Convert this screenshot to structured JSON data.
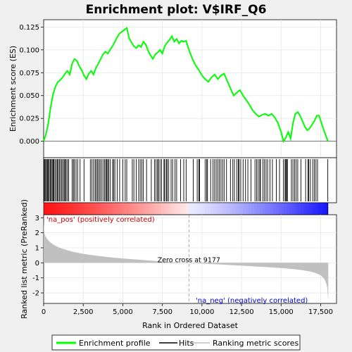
{
  "chart_data": {
    "type": "line",
    "title": "Enrichment plot: V$IRF_Q6",
    "xlabel": "Rank in Ordered Dataset",
    "ylabel_top": "Enrichment score (ES)",
    "ylabel_bottom": "Ranked list metric (PreRanked)",
    "x_range": [
      0,
      18500
    ],
    "es_ylim": [
      -0.018,
      0.133
    ],
    "metric_ylim": [
      -2.7,
      3.2
    ],
    "x_ticks": [
      {
        "v": 0,
        "label": "0"
      },
      {
        "v": 2500,
        "label": "2,500"
      },
      {
        "v": 5000,
        "label": "5,000"
      },
      {
        "v": 7500,
        "label": "7,500"
      },
      {
        "v": 10000,
        "label": "10,000"
      },
      {
        "v": 12500,
        "label": "12,500"
      },
      {
        "v": 15000,
        "label": "15,000"
      },
      {
        "v": 17500,
        "label": "17,500"
      }
    ],
    "es_ticks": [
      {
        "v": 0.0,
        "label": "0.000"
      },
      {
        "v": 0.025,
        "label": "0.025"
      },
      {
        "v": 0.05,
        "label": "0.050"
      },
      {
        "v": 0.075,
        "label": "0.075"
      },
      {
        "v": 0.1,
        "label": "0.100"
      },
      {
        "v": 0.125,
        "label": "0.125"
      }
    ],
    "metric_ticks": [
      {
        "v": -2,
        "label": "-2"
      },
      {
        "v": -1,
        "label": "-1"
      },
      {
        "v": 0,
        "label": "0"
      },
      {
        "v": 1,
        "label": "1"
      },
      {
        "v": 2,
        "label": "2"
      },
      {
        "v": 3,
        "label": "3"
      }
    ],
    "es_series": {
      "name": "Enrichment profile",
      "color": "#00ff00",
      "x": [
        0,
        150,
        300,
        450,
        600,
        750,
        900,
        1050,
        1200,
        1350,
        1500,
        1650,
        1800,
        1950,
        2100,
        2250,
        2400,
        2550,
        2700,
        2850,
        3000,
        3150,
        3300,
        3450,
        3600,
        3750,
        3900,
        4050,
        4200,
        4350,
        4500,
        4650,
        4800,
        4950,
        5100,
        5250,
        5400,
        5550,
        5700,
        5850,
        6000,
        6150,
        6300,
        6450,
        6600,
        6750,
        6900,
        7050,
        7200,
        7350,
        7500,
        7650,
        7800,
        7950,
        8100,
        8250,
        8400,
        8550,
        8700,
        8850,
        9000,
        9177,
        9400,
        9600,
        9800,
        10000,
        10200,
        10400,
        10600,
        10800,
        11000,
        11200,
        11400,
        11600,
        11800,
        12000,
        12200,
        12400,
        12600,
        12800,
        13000,
        13200,
        13400,
        13600,
        13800,
        14000,
        14200,
        14400,
        14600,
        14800,
        15000,
        15150,
        15300,
        15450,
        15600,
        15750,
        15900,
        16050,
        16200,
        16350,
        16500,
        16650,
        16800,
        16950,
        17100,
        17250,
        17400,
        17550,
        17700,
        17850,
        17950
      ],
      "y": [
        0.0,
        0.008,
        0.02,
        0.038,
        0.052,
        0.06,
        0.065,
        0.067,
        0.07,
        0.074,
        0.077,
        0.073,
        0.085,
        0.09,
        0.088,
        0.082,
        0.078,
        0.072,
        0.068,
        0.074,
        0.077,
        0.073,
        0.08,
        0.085,
        0.09,
        0.095,
        0.098,
        0.096,
        0.1,
        0.104,
        0.109,
        0.114,
        0.118,
        0.12,
        0.122,
        0.124,
        0.113,
        0.108,
        0.104,
        0.102,
        0.105,
        0.103,
        0.109,
        0.106,
        0.099,
        0.094,
        0.09,
        0.095,
        0.097,
        0.1,
        0.096,
        0.104,
        0.108,
        0.111,
        0.115,
        0.109,
        0.112,
        0.107,
        0.11,
        0.109,
        0.11,
        0.1,
        0.09,
        0.083,
        0.078,
        0.072,
        0.068,
        0.065,
        0.07,
        0.073,
        0.068,
        0.072,
        0.074,
        0.066,
        0.058,
        0.05,
        0.053,
        0.056,
        0.05,
        0.045,
        0.04,
        0.034,
        0.03,
        0.027,
        0.029,
        0.03,
        0.028,
        0.03,
        0.026,
        0.02,
        0.01,
        0.0,
        0.004,
        0.01,
        0.003,
        0.02,
        0.03,
        0.032,
        0.028,
        0.022,
        0.016,
        0.012,
        0.014,
        0.018,
        0.022,
        0.028,
        0.028,
        0.02,
        0.012,
        0.005,
        0.0
      ]
    },
    "metric_series": {
      "name": "Ranking metric scores",
      "color": "#c0c0c0",
      "x": [
        0,
        40,
        120,
        250,
        400,
        600,
        850,
        1100,
        1400,
        1700,
        2000,
        2400,
        2800,
        3200,
        3600,
        4000,
        4500,
        5000,
        5500,
        6000,
        6500,
        7000,
        7500,
        8000,
        8500,
        9000,
        9177,
        9500,
        10000,
        10500,
        11000,
        11500,
        12000,
        12500,
        13000,
        13500,
        14000,
        14500,
        15000,
        15500,
        16000,
        16400,
        16800,
        17100,
        17300,
        17500,
        17650,
        17750,
        17850,
        17920,
        17980
      ],
      "y": [
        2.7,
        2.0,
        1.75,
        1.55,
        1.38,
        1.22,
        1.08,
        0.97,
        0.87,
        0.78,
        0.7,
        0.62,
        0.55,
        0.49,
        0.44,
        0.39,
        0.34,
        0.29,
        0.25,
        0.21,
        0.17,
        0.13,
        0.09,
        0.06,
        0.03,
        0.01,
        0.0,
        -0.02,
        -0.05,
        -0.08,
        -0.1,
        -0.13,
        -0.16,
        -0.19,
        -0.22,
        -0.25,
        -0.28,
        -0.31,
        -0.35,
        -0.39,
        -0.44,
        -0.5,
        -0.57,
        -0.65,
        -0.73,
        -0.83,
        -0.97,
        -1.12,
        -1.35,
        -1.7,
        -2.55
      ]
    },
    "hits": [
      30,
      80,
      130,
      190,
      250,
      300,
      350,
      420,
      480,
      540,
      600,
      650,
      720,
      800,
      870,
      930,
      1000,
      1080,
      1150,
      1230,
      1300,
      1360,
      1420,
      1500,
      1580,
      1800,
      1880,
      1950,
      2050,
      2150,
      2300,
      2550,
      2950,
      3050,
      3150,
      3250,
      3320,
      3400,
      3480,
      3560,
      3650,
      3750,
      3850,
      3920,
      3980,
      4050,
      4100,
      4200,
      4350,
      4420,
      4500,
      4650,
      4800,
      5000,
      5150,
      5250,
      5600,
      5700,
      5850,
      6000,
      6100,
      6200,
      6300,
      6500,
      6800,
      7000,
      7100,
      7200,
      7250,
      7350,
      7450,
      7600,
      7650,
      7750,
      7800,
      7900,
      8050,
      8150,
      8300,
      8400,
      8650,
      8850,
      9000,
      9450,
      9700,
      9800,
      9850,
      10200,
      10300,
      10350,
      10550,
      10700,
      10800,
      10900,
      11000,
      11100,
      11200,
      11300,
      11400,
      11550,
      11800,
      11950,
      12050,
      12200,
      12300,
      12350,
      12450,
      12600,
      12750,
      12900,
      13100,
      13350,
      13450,
      13550,
      13650,
      13700,
      13850,
      13950,
      14050,
      14150,
      14300,
      14450,
      14700,
      14900,
      15150,
      15250,
      15300,
      15350,
      15400,
      15650,
      15750,
      15850,
      15950,
      16050,
      16250,
      16550,
      16700,
      16750,
      16850,
      17000,
      17100,
      17200,
      17300,
      17950
    ],
    "annotations": {
      "pos_label": "'na_pos' (positively correlated)",
      "neg_label": "'na_neg' (negatively correlated)",
      "zero_cross": "Zero cross at 9177",
      "zero_cross_x": 9177
    },
    "legend": {
      "placement": "bottom",
      "items": [
        {
          "label": "Enrichment profile",
          "color": "#00ff00",
          "kind": "line"
        },
        {
          "label": "Hits",
          "color": "#000000",
          "kind": "line"
        },
        {
          "label": "Ranking metric scores",
          "color": "#c0c0c0",
          "kind": "line"
        }
      ]
    }
  }
}
